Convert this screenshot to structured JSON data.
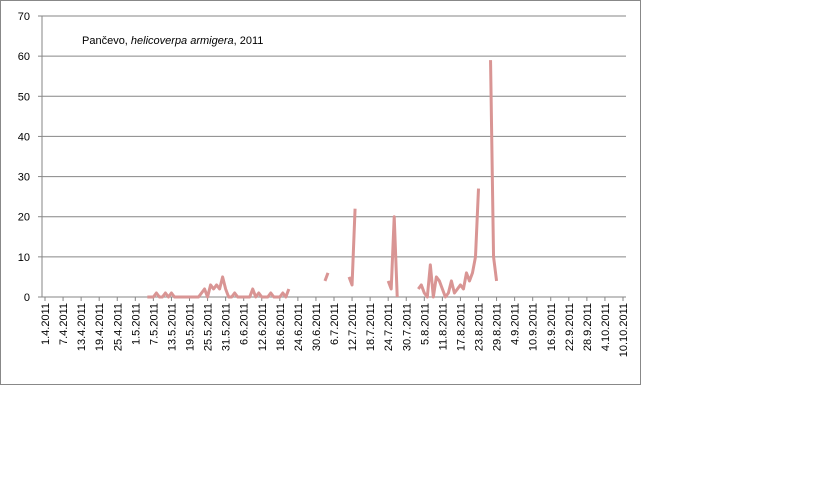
{
  "chart_data": {
    "type": "line",
    "title": [
      "Pančevo, ",
      "helicoverpa armigera",
      ", 2011"
    ],
    "x": [
      "5.5.2011",
      "6.5.2011",
      "7.5.2011",
      "8.5.2011",
      "9.5.2011",
      "10.5.2011",
      "11.5.2011",
      "12.5.2011",
      "13.5.2011",
      "14.5.2011",
      "15.5.2011",
      "16.5.2011",
      "17.5.2011",
      "18.5.2011",
      "19.5.2011",
      "20.5.2011",
      "21.5.2011",
      "22.5.2011",
      "23.5.2011",
      "24.5.2011",
      "25.5.2011",
      "26.5.2011",
      "27.5.2011",
      "28.5.2011",
      "29.5.2011",
      "30.5.2011",
      "31.5.2011",
      "1.6.2011",
      "2.6.2011",
      "3.6.2011",
      "4.6.2011",
      "5.6.2011",
      "6.6.2011",
      "7.6.2011",
      "8.6.2011",
      "9.6.2011",
      "10.6.2011",
      "11.6.2011",
      "12.6.2011",
      "13.6.2011",
      "14.6.2011",
      "15.6.2011",
      "16.6.2011",
      "17.6.2011",
      "18.6.2011",
      "19.6.2011",
      "20.6.2011",
      "21.6.2011",
      "22.6.2011",
      "23.6.2011",
      "24.6.2011",
      "25.6.2011",
      "26.6.2011",
      "27.6.2011",
      "28.6.2011",
      "29.6.2011",
      "30.6.2011",
      "1.7.2011",
      "2.7.2011",
      "3.7.2011",
      "4.7.2011",
      "5.7.2011",
      "6.7.2011",
      "7.7.2011",
      "8.7.2011",
      "9.7.2011",
      "10.7.2011",
      "11.7.2011",
      "12.7.2011",
      "13.7.2011",
      "14.7.2011",
      "15.7.2011",
      "16.7.2011",
      "17.7.2011",
      "18.7.2011",
      "19.7.2011",
      "20.7.2011",
      "21.7.2011",
      "22.7.2011",
      "23.7.2011",
      "24.7.2011",
      "25.7.2011",
      "26.7.2011",
      "27.7.2011",
      "28.7.2011",
      "29.7.2011",
      "30.7.2011",
      "31.7.2011",
      "1.8.2011",
      "2.8.2011",
      "3.8.2011",
      "4.8.2011",
      "5.8.2011",
      "6.8.2011",
      "7.8.2011",
      "8.8.2011",
      "9.8.2011",
      "10.8.2011",
      "11.8.2011",
      "12.8.2011",
      "13.8.2011",
      "14.8.2011",
      "15.8.2011",
      "16.8.2011",
      "17.8.2011",
      "18.8.2011",
      "19.8.2011",
      "20.8.2011",
      "21.8.2011",
      "22.8.2011",
      "23.8.2011",
      "24.8.2011",
      "25.8.2011",
      "26.8.2011",
      "27.8.2011",
      "28.8.2011",
      "29.8.2011"
    ],
    "values": [
      0,
      0,
      0,
      1,
      0,
      0,
      1,
      0,
      1,
      0,
      0,
      0,
      0,
      0,
      0,
      0,
      0,
      0,
      1,
      2,
      0,
      3,
      2,
      3,
      2,
      5,
      2,
      0,
      0,
      1,
      0,
      0,
      0,
      0,
      0,
      2,
      0,
      1,
      0,
      0,
      0,
      1,
      0,
      0,
      0,
      1,
      0,
      2,
      null,
      null,
      null,
      null,
      null,
      null,
      null,
      null,
      null,
      null,
      null,
      4,
      6,
      null,
      null,
      null,
      null,
      null,
      null,
      5,
      3,
      22,
      null,
      null,
      null,
      null,
      null,
      null,
      null,
      null,
      null,
      null,
      4,
      2,
      20,
      0,
      null,
      null,
      null,
      null,
      null,
      null,
      2,
      3,
      1,
      0,
      8,
      0,
      5,
      4,
      2,
      0,
      1,
      4,
      1,
      2,
      3,
      2,
      6,
      4,
      6,
      10,
      27,
      null,
      null,
      null,
      59,
      10,
      4
    ],
    "color": "#d99594",
    "xlim": [
      "1.4.2011",
      "10.10.2011"
    ],
    "xticks": [
      "1.4.2011",
      "7.4.2011",
      "13.4.2011",
      "19.4.2011",
      "25.4.2011",
      "1.5.2011",
      "7.5.2011",
      "13.5.2011",
      "19.5.2011",
      "25.5.2011",
      "31.5.2011",
      "6.6.2011",
      "12.6.2011",
      "18.6.2011",
      "24.6.2011",
      "30.6.2011",
      "6.7.2011",
      "12.7.2011",
      "18.7.2011",
      "24.7.2011",
      "30.7.2011",
      "5.8.2011",
      "11.8.2011",
      "17.8.2011",
      "23.8.2011",
      "29.8.2011",
      "4.9.2011",
      "10.9.2011",
      "16.9.2011",
      "22.9.2011",
      "28.9.2011",
      "4.10.2011",
      "10.10.2011"
    ],
    "ylim": [
      0,
      70
    ],
    "yticks": [
      0,
      10,
      20,
      30,
      40,
      50,
      60,
      70
    ],
    "grid": true
  }
}
